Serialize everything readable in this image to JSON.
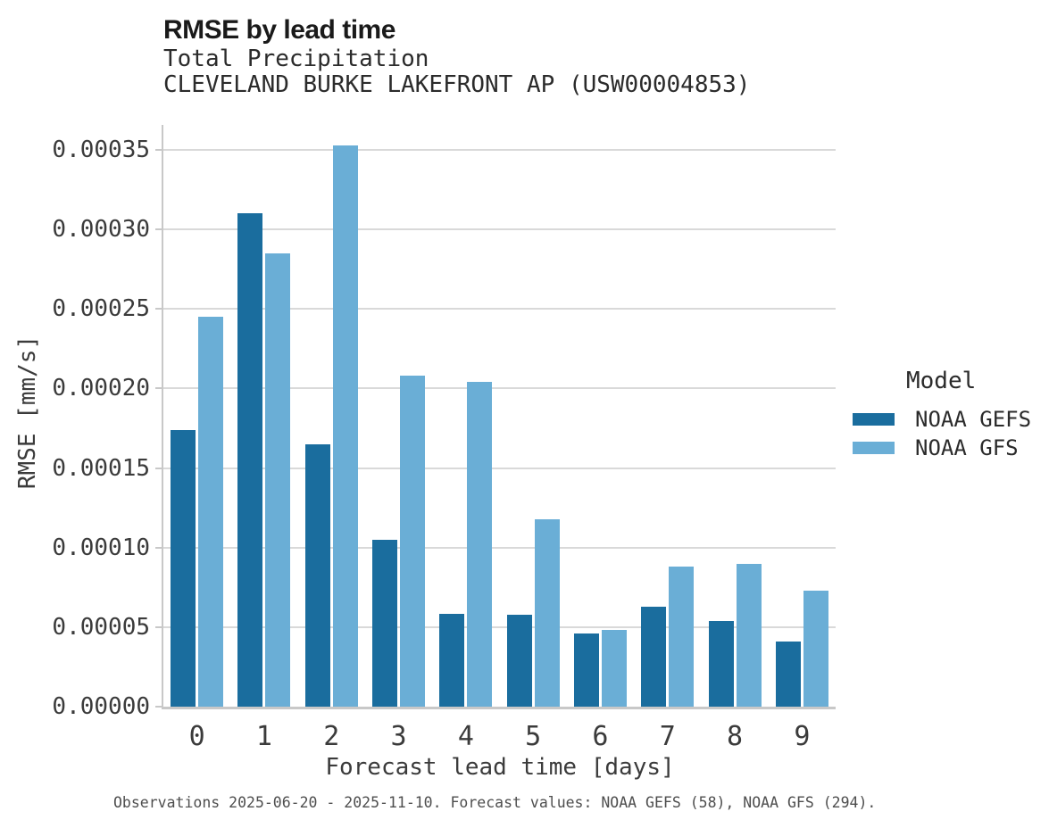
{
  "header": {
    "title": "RMSE by lead time",
    "subtitle_variable": "Total Precipitation",
    "subtitle_station": "CLEVELAND BURKE LAKEFRONT AP (USW00004853)"
  },
  "chart_data": {
    "type": "bar",
    "title": "RMSE by lead time",
    "subtitle": "Total Precipitation",
    "station": "CLEVELAND BURKE LAKEFRONT AP (USW00004853)",
    "xlabel": "Forecast lead time [days]",
    "ylabel": "RMSE [mm/s]",
    "categories": [
      "0",
      "1",
      "2",
      "3",
      "4",
      "5",
      "6",
      "7",
      "8",
      "9"
    ],
    "series": [
      {
        "name": "NOAA GEFS",
        "color": "#1a6d9e",
        "values": [
          0.000174,
          0.00031,
          0.000165,
          0.000105,
          5.85e-05,
          5.8e-05,
          4.6e-05,
          6.3e-05,
          5.4e-05,
          4.1e-05
        ]
      },
      {
        "name": "NOAA GFS",
        "color": "#6aaed6",
        "values": [
          0.000245,
          0.000285,
          0.000353,
          0.000208,
          0.000204,
          0.000118,
          4.85e-05,
          8.8e-05,
          9e-05,
          7.3e-05
        ]
      }
    ],
    "ylim": [
      0,
      0.0003657
    ],
    "yticks": [
      0.0,
      5e-05,
      0.0001,
      0.00015,
      0.0002,
      0.00025,
      0.0003,
      0.00035
    ],
    "ytick_labels": [
      "0.00000",
      "0.00005",
      "0.00010",
      "0.00015",
      "0.00020",
      "0.00025",
      "0.00030",
      "0.00035"
    ],
    "grid": "horizontal",
    "legend_position": "right"
  },
  "legend": {
    "title": "Model"
  },
  "caption": "Observations 2025-06-20 - 2025-11-10. Forecast values: NOAA GEFS (58), NOAA GFS (294)."
}
